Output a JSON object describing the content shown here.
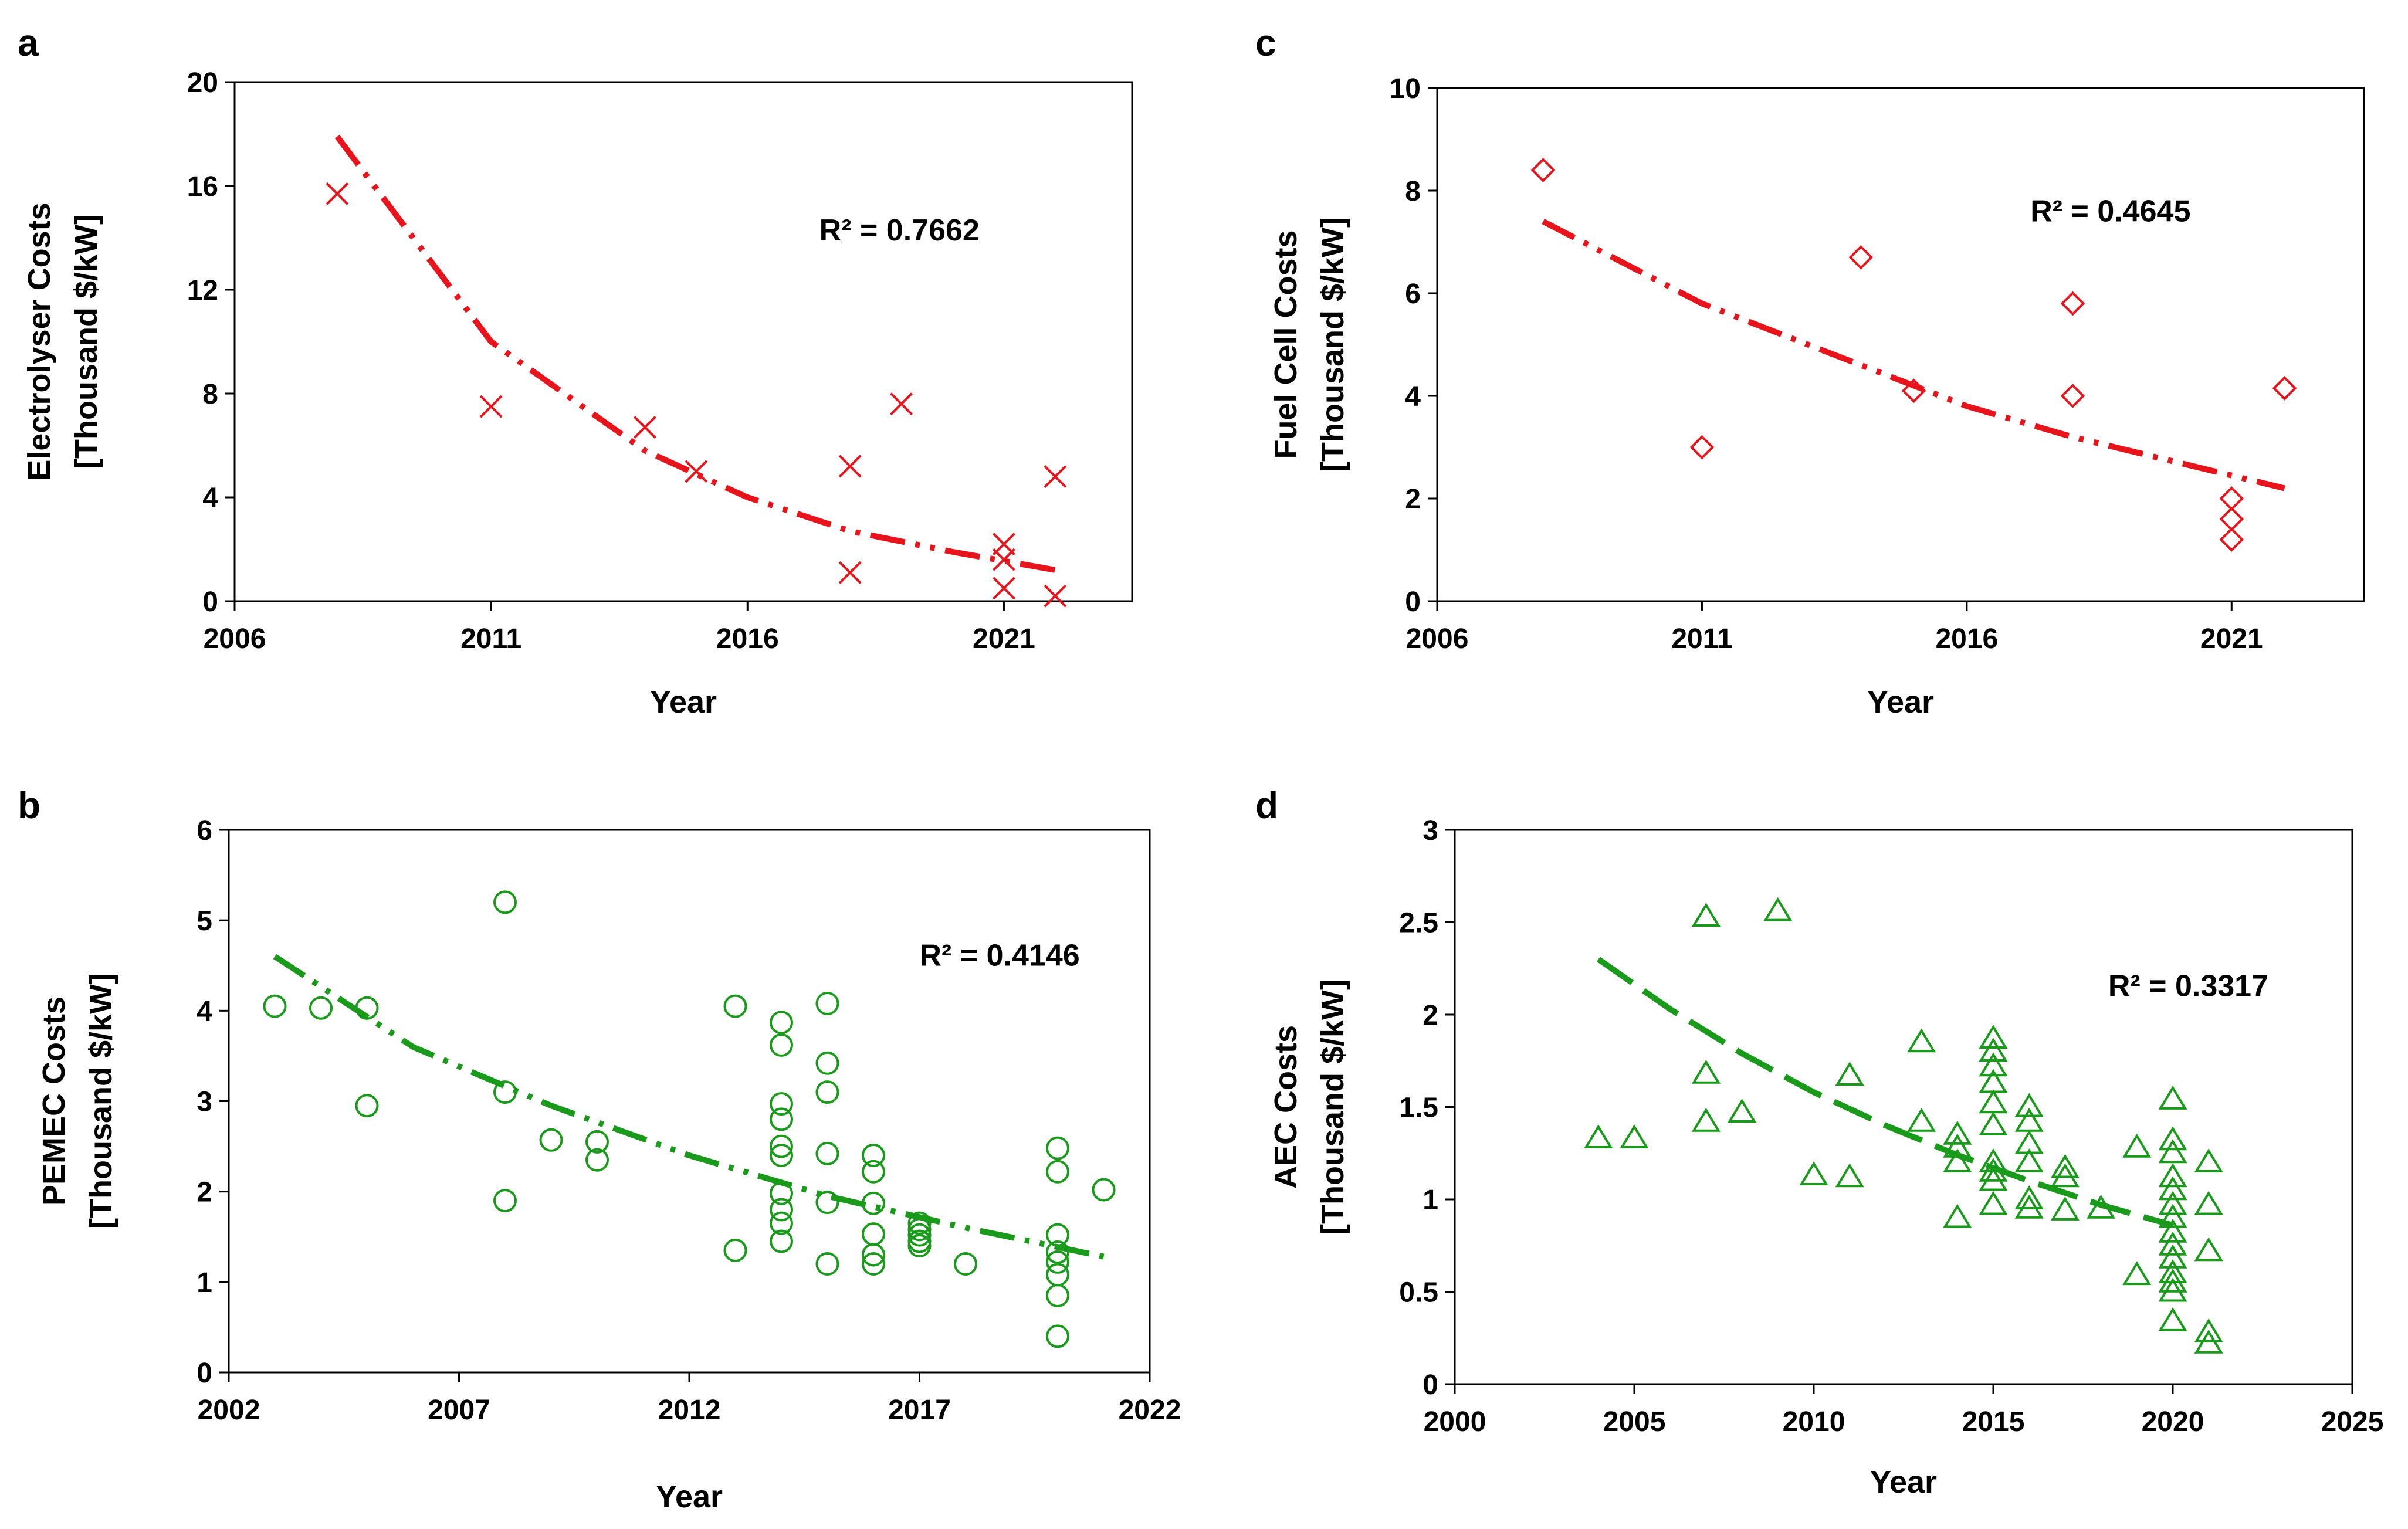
{
  "colors": {
    "red": "#e8141b",
    "green": "#1a9a1a",
    "axis": "#000000"
  },
  "chart_data": [
    {
      "id": "a",
      "panel_letter": "a",
      "type": "scatter",
      "marker": "x-icon",
      "color": "#e8141b",
      "xlabel": "Year",
      "ylabel_lines": [
        "Electrolyser Costs",
        "[Thousand $/kW]"
      ],
      "xlim": [
        2006,
        2023.5
      ],
      "ylim": [
        0,
        20
      ],
      "xticks": [
        2006,
        2011,
        2016,
        2021
      ],
      "yticks": [
        0,
        4,
        8,
        12,
        16,
        20
      ],
      "points": [
        [
          2008,
          15.7
        ],
        [
          2011,
          7.5
        ],
        [
          2014,
          6.7
        ],
        [
          2015,
          5.0
        ],
        [
          2018,
          5.2
        ],
        [
          2018,
          1.1
        ],
        [
          2019,
          7.6
        ],
        [
          2021,
          2.2
        ],
        [
          2021,
          1.6
        ],
        [
          2021,
          0.5
        ],
        [
          2022,
          4.8
        ],
        [
          2022,
          0.2
        ]
      ],
      "trendline": {
        "style": "dash-dot-dot",
        "x_range": [
          2008,
          2022
        ],
        "points": [
          [
            2008,
            17.9
          ],
          [
            2011,
            10.0
          ],
          [
            2014,
            5.8
          ],
          [
            2016,
            4.0
          ],
          [
            2018,
            2.7
          ],
          [
            2020,
            1.9
          ],
          [
            2022,
            1.2
          ]
        ]
      },
      "r2_text": "R² = 0.7662",
      "r2_anchor": [
        2017.4,
        13.9
      ]
    },
    {
      "id": "c",
      "panel_letter": "c",
      "type": "scatter",
      "marker": "diamond-icon",
      "color": "#e8141b",
      "xlabel": "Year",
      "ylabel_lines": [
        "Fuel Cell Costs",
        "[Thousand $/kW]"
      ],
      "xlim": [
        2006,
        2023.5
      ],
      "ylim": [
        0,
        10
      ],
      "xticks": [
        2006,
        2011,
        2016,
        2021
      ],
      "yticks": [
        0,
        2,
        4,
        6,
        8,
        10
      ],
      "points": [
        [
          2008,
          8.4
        ],
        [
          2011,
          3.0
        ],
        [
          2014,
          6.7
        ],
        [
          2015,
          4.1
        ],
        [
          2018,
          5.8
        ],
        [
          2018,
          4.0
        ],
        [
          2021,
          2.0
        ],
        [
          2021,
          1.6
        ],
        [
          2021,
          1.2
        ],
        [
          2022,
          4.15
        ]
      ],
      "trendline": {
        "style": "dash-dot-dot",
        "x_range": [
          2008,
          2022
        ],
        "points": [
          [
            2008,
            7.4
          ],
          [
            2011,
            5.8
          ],
          [
            2014,
            4.6
          ],
          [
            2016,
            3.8
          ],
          [
            2018,
            3.2
          ],
          [
            2020,
            2.7
          ],
          [
            2022,
            2.2
          ]
        ]
      },
      "r2_text": "R² = 0.4645",
      "r2_anchor": [
        2017.2,
        7.4
      ]
    },
    {
      "id": "b",
      "panel_letter": "b",
      "type": "scatter",
      "marker": "circle-icon",
      "color": "#1a9a1a",
      "xlabel": "Year",
      "ylabel_lines": [
        "PEMEC Costs",
        "[Thousand $/kW]"
      ],
      "xlim": [
        2002,
        2022
      ],
      "ylim": [
        0,
        6
      ],
      "xticks": [
        2002,
        2007,
        2012,
        2017,
        2022
      ],
      "yticks": [
        0,
        1,
        2,
        3,
        4,
        5,
        6
      ],
      "points": [
        [
          2003,
          4.05
        ],
        [
          2004,
          4.03
        ],
        [
          2005,
          4.03
        ],
        [
          2005,
          2.95
        ],
        [
          2008,
          5.2
        ],
        [
          2008,
          3.1
        ],
        [
          2008,
          1.9
        ],
        [
          2009,
          2.57
        ],
        [
          2010,
          2.55
        ],
        [
          2010,
          2.35
        ],
        [
          2013,
          4.05
        ],
        [
          2013,
          1.35
        ],
        [
          2014,
          3.87
        ],
        [
          2014,
          3.62
        ],
        [
          2014,
          2.97
        ],
        [
          2014,
          2.8
        ],
        [
          2014,
          2.5
        ],
        [
          2014,
          2.4
        ],
        [
          2014,
          1.98
        ],
        [
          2014,
          1.8
        ],
        [
          2014,
          1.65
        ],
        [
          2014,
          1.45
        ],
        [
          2015,
          4.08
        ],
        [
          2015,
          3.42
        ],
        [
          2015,
          3.1
        ],
        [
          2015,
          2.42
        ],
        [
          2015,
          1.88
        ],
        [
          2015,
          1.2
        ],
        [
          2016,
          2.4
        ],
        [
          2016,
          2.22
        ],
        [
          2016,
          1.87
        ],
        [
          2016,
          1.53
        ],
        [
          2016,
          1.3
        ],
        [
          2016,
          1.2
        ],
        [
          2017,
          1.65
        ],
        [
          2017,
          1.58
        ],
        [
          2017,
          1.52
        ],
        [
          2017,
          1.45
        ],
        [
          2017,
          1.4
        ],
        [
          2018,
          1.2
        ],
        [
          2020,
          2.48
        ],
        [
          2020,
          2.22
        ],
        [
          2020,
          1.52
        ],
        [
          2020,
          1.33
        ],
        [
          2020,
          1.22
        ],
        [
          2020,
          1.08
        ],
        [
          2020,
          0.85
        ],
        [
          2020,
          0.4
        ],
        [
          2021,
          2.02
        ]
      ],
      "trendline": {
        "style": "dash-dot-dot",
        "x_range": [
          2003,
          2021
        ],
        "points": [
          [
            2003,
            4.6
          ],
          [
            2006,
            3.6
          ],
          [
            2009,
            2.95
          ],
          [
            2012,
            2.4
          ],
          [
            2015,
            1.95
          ],
          [
            2018,
            1.6
          ],
          [
            2021,
            1.28
          ]
        ]
      },
      "r2_text": "R² = 0.4146",
      "r2_anchor": [
        2017.0,
        4.5
      ]
    },
    {
      "id": "d",
      "panel_letter": "d",
      "type": "scatter",
      "marker": "triangle-icon",
      "color": "#1a9a1a",
      "xlabel": "Year",
      "ylabel_lines": [
        "AEC Costs",
        "[Thousand $/kW]"
      ],
      "xlim": [
        2000,
        2025
      ],
      "ylim": [
        0,
        3
      ],
      "xticks": [
        2000,
        2005,
        2010,
        2015,
        2020,
        2025
      ],
      "yticks": [
        0,
        0.5,
        1,
        1.5,
        2,
        2.5,
        3
      ],
      "ytick_labels": [
        "0",
        "0.5",
        "1",
        "1.5",
        "2",
        "2.5",
        "3"
      ],
      "points": [
        [
          2004,
          1.33
        ],
        [
          2005,
          1.33
        ],
        [
          2007,
          2.53
        ],
        [
          2007,
          1.68
        ],
        [
          2007,
          1.42
        ],
        [
          2008,
          1.47
        ],
        [
          2009,
          2.56
        ],
        [
          2010,
          1.13
        ],
        [
          2011,
          1.67
        ],
        [
          2011,
          1.12
        ],
        [
          2013,
          1.85
        ],
        [
          2013,
          1.42
        ],
        [
          2014,
          1.35
        ],
        [
          2014,
          1.28
        ],
        [
          2014,
          1.2
        ],
        [
          2014,
          0.9
        ],
        [
          2015,
          1.87
        ],
        [
          2015,
          1.8
        ],
        [
          2015,
          1.72
        ],
        [
          2015,
          1.63
        ],
        [
          2015,
          1.52
        ],
        [
          2015,
          1.4
        ],
        [
          2015,
          1.2
        ],
        [
          2015,
          1.15
        ],
        [
          2015,
          1.1
        ],
        [
          2015,
          0.97
        ],
        [
          2016,
          1.5
        ],
        [
          2016,
          1.42
        ],
        [
          2016,
          1.3
        ],
        [
          2016,
          1.2
        ],
        [
          2016,
          1.0
        ],
        [
          2016,
          0.95
        ],
        [
          2017,
          1.17
        ],
        [
          2017,
          1.12
        ],
        [
          2017,
          0.94
        ],
        [
          2018,
          0.95
        ],
        [
          2019,
          1.28
        ],
        [
          2019,
          0.59
        ],
        [
          2020,
          1.54
        ],
        [
          2020,
          1.32
        ],
        [
          2020,
          1.25
        ],
        [
          2020,
          1.12
        ],
        [
          2020,
          1.05
        ],
        [
          2020,
          0.97
        ],
        [
          2020,
          0.9
        ],
        [
          2020,
          0.82
        ],
        [
          2020,
          0.75
        ],
        [
          2020,
          0.68
        ],
        [
          2020,
          0.6
        ],
        [
          2020,
          0.55
        ],
        [
          2020,
          0.5
        ],
        [
          2020,
          0.34
        ],
        [
          2021,
          1.2
        ],
        [
          2021,
          0.97
        ],
        [
          2021,
          0.72
        ],
        [
          2021,
          0.28
        ],
        [
          2021,
          0.22
        ]
      ],
      "trendline": {
        "style": "long-dash",
        "x_range": [
          2004,
          2020
        ],
        "points": [
          [
            2004,
            2.3
          ],
          [
            2006,
            2.03
          ],
          [
            2008,
            1.79
          ],
          [
            2010,
            1.58
          ],
          [
            2012,
            1.4
          ],
          [
            2014,
            1.24
          ],
          [
            2016,
            1.1
          ],
          [
            2018,
            0.97
          ],
          [
            2020,
            0.86
          ]
        ]
      },
      "r2_text": "R² = 0.3317",
      "r2_anchor": [
        2018.2,
        2.1
      ]
    }
  ]
}
